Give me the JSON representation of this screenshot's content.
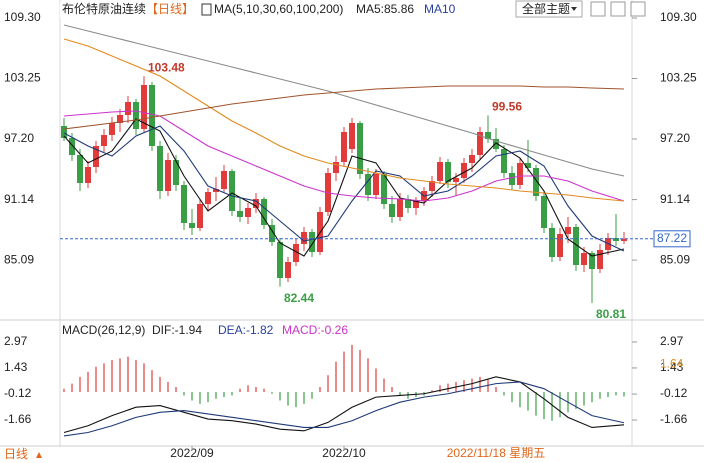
{
  "chart_data": [
    {
      "type": "candlestick",
      "title": "布伦特原油连续",
      "period_label": "【日线】",
      "ma_label": "MA(5,10,30,60,100,200)",
      "ma5_label": "MA5:85.86",
      "ma10_label": "MA10",
      "toolbar_button": "全部主题",
      "up_color": "#e23b3b",
      "down_color": "#3a9e46",
      "ylim": [
        79.3,
        110.3
      ],
      "yticks": [
        {
          "value": 109.3,
          "label": "109.30"
        },
        103.25,
        {
          "value": 97.2,
          "label": "97.20"
        },
        91.14,
        85.09
      ],
      "xticks": [
        {
          "value": 16,
          "label": "2022/09"
        },
        {
          "value": 35,
          "label": "2022/10"
        }
      ],
      "cursor": {
        "value": 54,
        "label": "2022/11/18 星期五"
      },
      "footer_label": "日线",
      "last_price": 87.22,
      "open": [
        98.5,
        97.3,
        95.6,
        92.8,
        94.4,
        96.5,
        97.6,
        98.8,
        99.6,
        100.9,
        98.2,
        102.6,
        96.5,
        92.0,
        95.1,
        92.6,
        88.8,
        88.3,
        90.7,
        91.9,
        92.2,
        94.0,
        90.0,
        89.4,
        90.3,
        91.2,
        88.6,
        86.9,
        83.3,
        84.9,
        86.7,
        87.9,
        85.9,
        89.9,
        93.8,
        94.9,
        96.2,
        98.8,
        93.7,
        91.6,
        93.7,
        90.7,
        89.4,
        91.2,
        90.3,
        91.0,
        92.0,
        93.0,
        94.9,
        92.9,
        93.3,
        94.8,
        95.6,
        97.9,
        97.2,
        96.2,
        93.8,
        92.6,
        94.8,
        94.3,
        91.5,
        88.3,
        85.4,
        87.7,
        88.4,
        84.6,
        85.8,
        84.2,
        86.1,
        87.3,
        87.0
      ],
      "high": [
        99.3,
        97.8,
        96.2,
        95.0,
        97.0,
        98.2,
        99.4,
        100.2,
        101.5,
        101.2,
        103.48,
        102.9,
        97.0,
        95.8,
        95.6,
        93.0,
        90.2,
        91.2,
        92.3,
        93.4,
        94.6,
        94.2,
        91.3,
        90.8,
        91.8,
        91.4,
        89.2,
        87.3,
        85.4,
        87.2,
        88.4,
        88.2,
        90.4,
        94.3,
        95.5,
        98.4,
        99.3,
        99.0,
        94.3,
        94.2,
        94.0,
        91.5,
        91.8,
        91.6,
        91.4,
        92.4,
        93.5,
        95.4,
        95.2,
        93.8,
        95.3,
        96.2,
        98.4,
        99.56,
        98.3,
        96.6,
        94.5,
        95.3,
        97.1,
        94.6,
        91.9,
        88.8,
        88.3,
        89.4,
        88.7,
        86.4,
        86.0,
        86.7,
        87.8,
        89.7,
        87.9
      ],
      "low": [
        97.0,
        95.0,
        92.0,
        92.3,
        93.8,
        95.9,
        97.0,
        97.9,
        98.8,
        97.6,
        97.9,
        96.0,
        91.2,
        91.5,
        92.0,
        88.1,
        87.6,
        88.0,
        90.0,
        91.0,
        91.8,
        89.5,
        88.9,
        88.7,
        89.8,
        88.2,
        86.5,
        82.44,
        82.9,
        84.5,
        86.0,
        85.4,
        85.6,
        89.5,
        93.0,
        94.5,
        95.8,
        93.2,
        91.0,
        91.2,
        90.2,
        88.8,
        89.0,
        89.8,
        89.6,
        90.5,
        91.4,
        92.7,
        92.3,
        91.5,
        92.8,
        93.9,
        95.2,
        96.8,
        95.9,
        93.3,
        92.1,
        92.2,
        93.9,
        91.0,
        87.8,
        84.9,
        85.0,
        86.8,
        84.0,
        83.9,
        80.81,
        83.8,
        85.6,
        86.5,
        86.7
      ],
      "close": [
        97.3,
        95.6,
        92.8,
        94.4,
        96.5,
        97.6,
        98.8,
        99.6,
        100.9,
        98.2,
        102.6,
        96.5,
        92.0,
        95.1,
        92.6,
        88.8,
        88.3,
        90.7,
        91.9,
        92.2,
        94.0,
        90.0,
        89.4,
        90.3,
        91.2,
        88.6,
        86.9,
        83.3,
        84.9,
        86.7,
        87.9,
        85.9,
        89.9,
        93.8,
        94.9,
        97.9,
        98.8,
        93.7,
        91.6,
        93.7,
        90.7,
        89.4,
        91.2,
        90.3,
        91.0,
        92.0,
        93.0,
        94.9,
        92.9,
        93.3,
        94.8,
        95.6,
        97.9,
        97.2,
        96.2,
        93.8,
        92.6,
        94.8,
        94.3,
        91.5,
        88.3,
        85.4,
        87.7,
        88.4,
        84.6,
        85.8,
        84.2,
        86.1,
        87.3,
        87.0,
        87.22
      ],
      "extremes": [
        {
          "index": 10,
          "value": 103.48,
          "position": "above",
          "color": "#c0392b"
        },
        {
          "index": 53,
          "value": 99.56,
          "position": "above",
          "color": "#c0392b"
        },
        {
          "index": 27,
          "value": 82.44,
          "position": "below",
          "color": "#3a9e46"
        },
        {
          "index": 66,
          "value": 80.81,
          "position": "below",
          "color": "#3a9e46"
        }
      ],
      "ma_x": [
        0,
        3,
        6,
        9,
        12,
        15,
        18,
        21,
        24,
        27,
        30,
        33,
        36,
        39,
        42,
        45,
        48,
        51,
        54,
        57,
        60,
        63,
        66,
        70
      ],
      "series": [
        {
          "name": "MA5",
          "color": "#111111",
          "values": [
            97.5,
            94.8,
            96.0,
            99.2,
            98.0,
            93.5,
            90.0,
            91.8,
            90.5,
            86.8,
            85.5,
            89.0,
            95.5,
            94.8,
            91.3,
            90.8,
            93.0,
            94.3,
            96.8,
            95.3,
            92.0,
            87.2,
            85.5,
            86.2
          ]
        },
        {
          "name": "MA10",
          "color": "#1f3a78",
          "values": [
            97.8,
            96.5,
            95.5,
            97.5,
            98.5,
            96.0,
            92.5,
            91.5,
            91.0,
            89.0,
            87.0,
            87.5,
            91.0,
            94.0,
            93.5,
            91.5,
            92.0,
            93.5,
            95.5,
            96.0,
            94.5,
            90.5,
            87.5,
            86.0
          ]
        },
        {
          "name": "MA30",
          "color": "#cc33cc",
          "values": [
            99.5,
            99.7,
            99.9,
            100.0,
            99.5,
            98.0,
            96.5,
            95.5,
            94.5,
            93.5,
            92.5,
            91.8,
            91.5,
            91.3,
            91.2,
            91.0,
            91.3,
            92.0,
            93.0,
            93.5,
            93.5,
            93.0,
            92.0,
            91.0
          ]
        },
        {
          "name": "MA60",
          "color": "#e08a1e",
          "values": [
            107.2,
            106.5,
            105.5,
            104.5,
            103.5,
            102.0,
            100.5,
            99.0,
            97.8,
            96.5,
            95.5,
            94.8,
            94.3,
            93.8,
            93.3,
            93.0,
            92.7,
            92.5,
            92.3,
            92.0,
            91.8,
            91.6,
            91.3,
            91.0
          ]
        },
        {
          "name": "MA100",
          "color": "#8a8a8a",
          "values": [
            108.6,
            108.0,
            107.4,
            106.8,
            106.2,
            105.6,
            105.0,
            104.4,
            103.8,
            103.2,
            102.6,
            102.0,
            101.3,
            100.6,
            99.9,
            99.2,
            98.5,
            97.8,
            97.0,
            96.3,
            95.6,
            94.9,
            94.2,
            93.5
          ]
        },
        {
          "name": "MA200",
          "color": "#a0522d",
          "values": [
            98.2,
            98.5,
            98.8,
            99.1,
            99.5,
            99.9,
            100.3,
            100.7,
            101.0,
            101.3,
            101.6,
            101.8,
            102.0,
            102.2,
            102.3,
            102.4,
            102.5,
            102.5,
            102.5,
            102.5,
            102.4,
            102.4,
            102.3,
            102.2
          ]
        }
      ]
    },
    {
      "type": "macd",
      "title": "MACD(26,12,9)",
      "dif_label": "DIF:-1.94",
      "dea_label": "DEA:-1.82",
      "macd_label": "MACD:-0.26",
      "ylim": [
        -3.14,
        3.68
      ],
      "yticks": [
        2.97,
        1.43,
        -0.12,
        -1.66
      ],
      "marker": 1.64,
      "histogram": [
        0.2,
        0.5,
        0.9,
        1.2,
        1.5,
        1.7,
        1.9,
        2.0,
        2.1,
        1.9,
        1.7,
        1.3,
        0.9,
        0.6,
        0.3,
        -0.2,
        -0.5,
        -0.7,
        -0.6,
        -0.4,
        -0.3,
        -0.2,
        0.2,
        0.4,
        0.3,
        0.2,
        -0.1,
        -0.5,
        -0.8,
        -0.9,
        -0.7,
        -0.4,
        0.3,
        1.0,
        1.8,
        2.4,
        2.8,
        2.5,
        2.0,
        1.4,
        0.8,
        0.3,
        -0.2,
        -0.4,
        -0.3,
        -0.2,
        0.1,
        0.4,
        0.5,
        0.6,
        0.7,
        0.8,
        0.9,
        0.8,
        0.3,
        -0.2,
        -0.6,
        -0.9,
        -1.1,
        -1.4,
        -1.6,
        -1.7,
        -1.5,
        -1.2,
        -1.0,
        -0.8,
        -0.6,
        -0.4,
        -0.3,
        -0.2,
        -0.26
      ],
      "series": [
        {
          "name": "DIF",
          "color": "#111111",
          "values": [
            -2.4,
            -2.0,
            -1.4,
            -0.9,
            -0.8,
            -1.2,
            -1.6,
            -1.7,
            -1.9,
            -2.2,
            -2.3,
            -1.8,
            -0.9,
            -0.3,
            -0.2,
            -0.1,
            0.2,
            0.5,
            0.9,
            0.6,
            -0.4,
            -1.5,
            -2.1,
            -1.94
          ]
        },
        {
          "name": "DEA",
          "color": "#1f3a78",
          "values": [
            -2.6,
            -2.4,
            -2.0,
            -1.5,
            -1.2,
            -1.1,
            -1.3,
            -1.5,
            -1.7,
            -1.9,
            -2.1,
            -2.1,
            -1.7,
            -1.1,
            -0.6,
            -0.3,
            -0.1,
            0.2,
            0.5,
            0.6,
            0.2,
            -0.6,
            -1.4,
            -1.82
          ]
        }
      ]
    }
  ]
}
